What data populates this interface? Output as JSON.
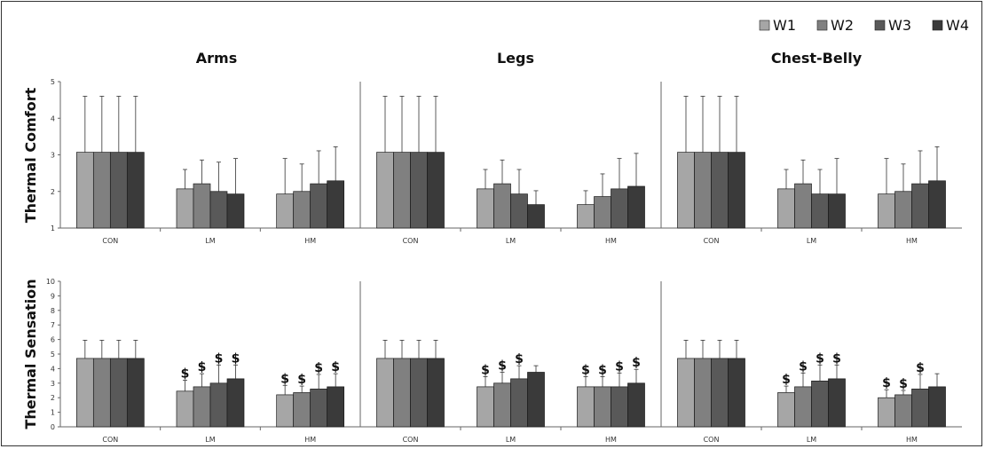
{
  "chart_data": {
    "type": "bar",
    "legend": {
      "placement": "top-right",
      "entries": [
        {
          "name": "W1",
          "color": "#a6a6a6"
        },
        {
          "name": "W2",
          "color": "#808080"
        },
        {
          "name": "W3",
          "color": "#595959"
        },
        {
          "name": "W4",
          "color": "#3a3a3a"
        }
      ]
    },
    "categories": [
      "CON",
      "LM",
      "HM"
    ],
    "error_bars": "upper",
    "grid": false,
    "annotation_marker": "$",
    "panel_titles": [
      "Arms",
      "Legs",
      "Chest-Belly"
    ],
    "rows": [
      {
        "ylabel": "Thermal Comfort",
        "ylim": [
          1,
          5
        ],
        "yticks": [
          "1",
          "2",
          "3",
          "4",
          "5"
        ],
        "panels": [
          {
            "title": "Arms",
            "values": [
              [
                3.07,
                3.07,
                3.07,
                3.07
              ],
              [
                2.07,
                2.21,
                2.0,
                1.93
              ],
              [
                1.93,
                2.0,
                2.21,
                2.29
              ]
            ],
            "errors": [
              [
                1.53,
                1.53,
                1.53,
                1.53
              ],
              [
                0.53,
                0.65,
                0.8,
                0.97
              ],
              [
                0.97,
                0.75,
                0.9,
                0.93
              ]
            ],
            "marks": [
              [
                false,
                false,
                false,
                false
              ],
              [
                false,
                false,
                false,
                false
              ],
              [
                false,
                false,
                false,
                false
              ]
            ]
          },
          {
            "title": "Legs",
            "values": [
              [
                3.07,
                3.07,
                3.07,
                3.07
              ],
              [
                2.07,
                2.21,
                1.93,
                1.64
              ],
              [
                1.64,
                1.86,
                2.07,
                2.14
              ]
            ],
            "errors": [
              [
                1.53,
                1.53,
                1.53,
                1.53
              ],
              [
                0.53,
                0.65,
                0.67,
                0.38
              ],
              [
                0.38,
                0.62,
                0.83,
                0.9
              ]
            ],
            "marks": [
              [
                false,
                false,
                false,
                false
              ],
              [
                false,
                false,
                false,
                false
              ],
              [
                false,
                false,
                false,
                false
              ]
            ]
          },
          {
            "title": "Chest-Belly",
            "values": [
              [
                3.07,
                3.07,
                3.07,
                3.07
              ],
              [
                2.07,
                2.21,
                1.93,
                1.93
              ],
              [
                1.93,
                2.0,
                2.21,
                2.29
              ]
            ],
            "errors": [
              [
                1.53,
                1.53,
                1.53,
                1.53
              ],
              [
                0.53,
                0.65,
                0.67,
                0.97
              ],
              [
                0.97,
                0.75,
                0.9,
                0.93
              ]
            ],
            "marks": [
              [
                false,
                false,
                false,
                false
              ],
              [
                false,
                false,
                false,
                false
              ],
              [
                false,
                false,
                false,
                false
              ]
            ]
          }
        ]
      },
      {
        "ylabel": "Thermal Sensation",
        "ylim": [
          0,
          10
        ],
        "yticks": [
          "0",
          "1",
          "2",
          "3",
          "4",
          "5",
          "6",
          "7",
          "8",
          "9",
          "10"
        ],
        "panels": [
          {
            "title": "Arms",
            "values": [
              [
                4.7,
                4.7,
                4.7,
                4.7
              ],
              [
                2.45,
                2.75,
                3.0,
                3.3
              ],
              [
                2.2,
                2.35,
                2.6,
                2.75
              ]
            ],
            "errors": [
              [
                1.25,
                1.25,
                1.25,
                1.25
              ],
              [
                0.75,
                0.9,
                1.25,
                0.95
              ],
              [
                0.65,
                0.45,
                1.0,
                0.9
              ]
            ],
            "marks": [
              [
                false,
                false,
                false,
                false
              ],
              [
                true,
                true,
                true,
                true
              ],
              [
                true,
                true,
                true,
                true
              ]
            ]
          },
          {
            "title": "Legs",
            "values": [
              [
                4.7,
                4.7,
                4.7,
                4.7
              ],
              [
                2.75,
                3.0,
                3.3,
                3.75
              ],
              [
                2.75,
                2.75,
                2.75,
                3.0
              ]
            ],
            "errors": [
              [
                1.25,
                1.25,
                1.25,
                1.25
              ],
              [
                0.7,
                0.75,
                0.9,
                0.45
              ],
              [
                0.7,
                0.7,
                0.95,
                0.95
              ]
            ],
            "marks": [
              [
                false,
                false,
                false,
                false
              ],
              [
                true,
                true,
                true,
                false
              ],
              [
                true,
                true,
                true,
                true
              ]
            ]
          },
          {
            "title": "Chest-Belly",
            "values": [
              [
                4.7,
                4.7,
                4.7,
                4.7
              ],
              [
                2.35,
                2.75,
                3.15,
                3.3
              ],
              [
                2.0,
                2.2,
                2.6,
                2.75
              ]
            ],
            "errors": [
              [
                1.25,
                1.25,
                1.25,
                1.25
              ],
              [
                0.45,
                0.95,
                1.1,
                0.95
              ],
              [
                0.55,
                0.3,
                1.0,
                0.9
              ]
            ],
            "marks": [
              [
                false,
                false,
                false,
                false
              ],
              [
                true,
                true,
                true,
                true
              ],
              [
                true,
                true,
                true,
                false
              ]
            ]
          }
        ]
      }
    ]
  }
}
